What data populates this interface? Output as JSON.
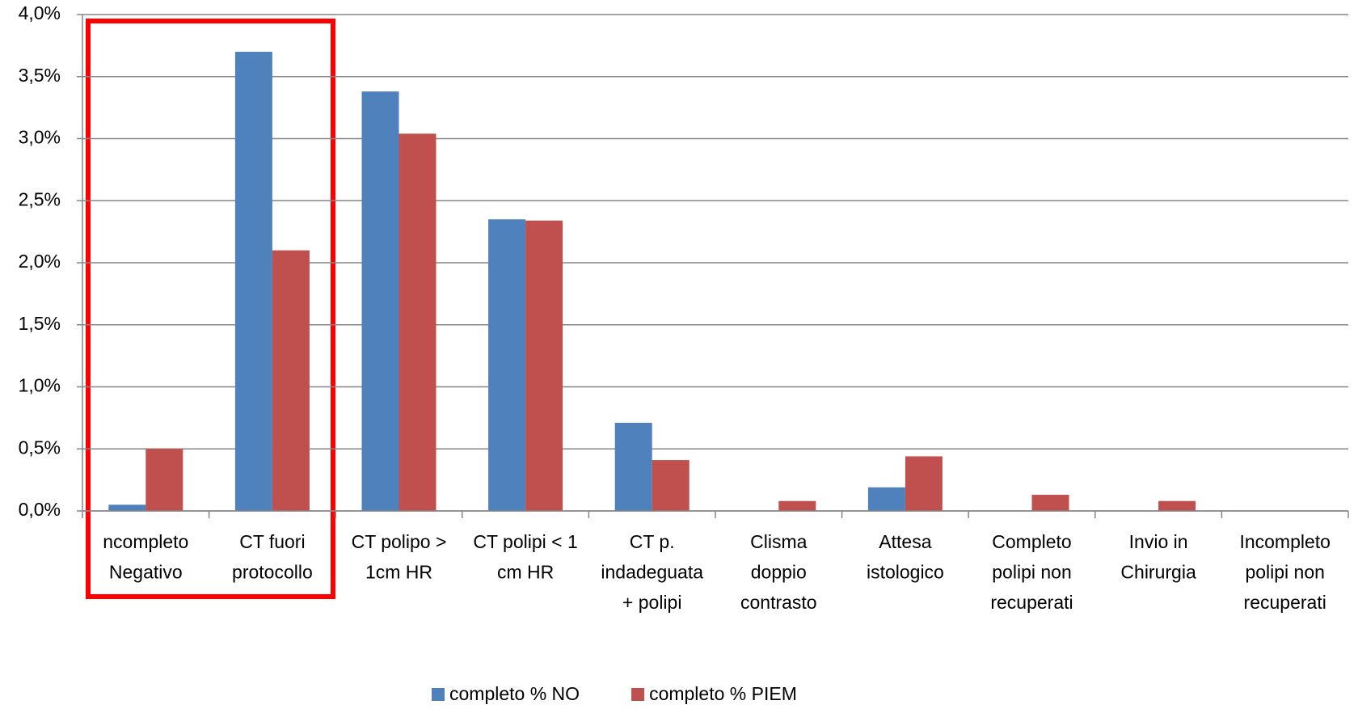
{
  "chart_data": {
    "type": "bar",
    "categories": [
      [
        "ncompleto",
        "Negativo"
      ],
      [
        "CT fuori",
        "protocollo"
      ],
      [
        "CT polipo >",
        "1cm HR"
      ],
      [
        "CT polipi < 1",
        "cm HR"
      ],
      [
        "CT p.",
        "indadeguata",
        "+  polipi"
      ],
      [
        "Clisma",
        "doppio",
        "contrasto"
      ],
      [
        "Attesa",
        "istologico"
      ],
      [
        "Completo",
        "polipi non",
        "recuperati"
      ],
      [
        "Invio in",
        "Chirurgia"
      ],
      [
        "Incompleto",
        "polipi non",
        "recuperati"
      ]
    ],
    "series": [
      {
        "name": "completo % NO",
        "color": "#4f81bd",
        "values": [
          0.05,
          3.7,
          3.38,
          2.35,
          0.71,
          0,
          0.19,
          0,
          0,
          0
        ]
      },
      {
        "name": "completo % PIEM",
        "color": "#c0504d",
        "values": [
          0.5,
          2.1,
          3.04,
          2.34,
          0.41,
          0.08,
          0.44,
          0.13,
          0.08,
          0
        ]
      }
    ],
    "ylim": [
      0,
      4
    ],
    "yticks": [
      {
        "value": 0,
        "label": "0,0%"
      },
      {
        "value": 0.5,
        "label": "0,5%"
      },
      {
        "value": 1,
        "label": "1,0%"
      },
      {
        "value": 1.5,
        "label": "1,5%"
      },
      {
        "value": 2,
        "label": "2,0%"
      },
      {
        "value": 2.5,
        "label": "2,5%"
      },
      {
        "value": 3,
        "label": "3,0%"
      },
      {
        "value": 3.5,
        "label": "3,5%"
      },
      {
        "value": 4,
        "label": "4,0%"
      }
    ],
    "grid": true,
    "legend": "bottom"
  }
}
